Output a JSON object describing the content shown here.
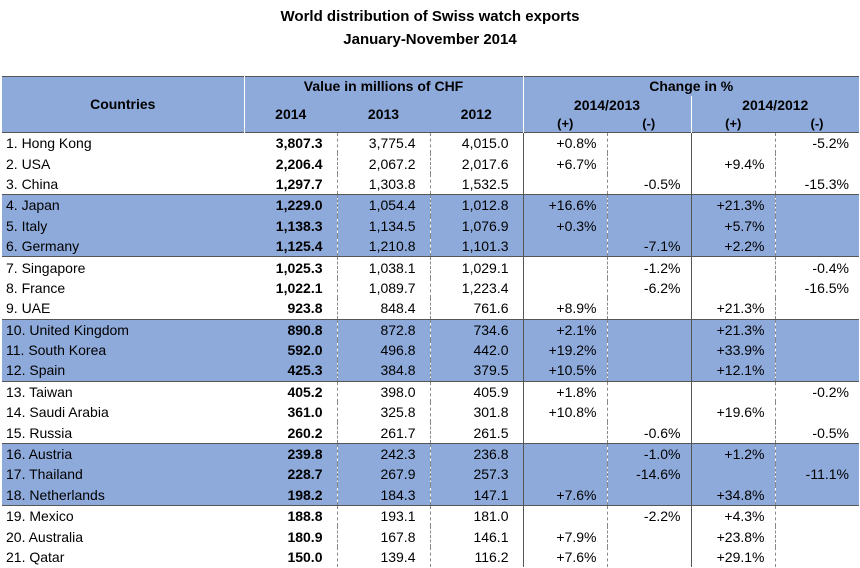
{
  "title": "World distribution of Swiss watch exports",
  "subtitle": "January-November 2014",
  "header": {
    "countries": "Countries",
    "value_group": "Value in millions of CHF",
    "change_group": "Change in %",
    "y2014": "2014",
    "y2013": "2013",
    "y2012": "2012",
    "p1": "2014/2013",
    "p2": "2014/2012",
    "plus": "(+)",
    "minus": "(-)"
  },
  "rows": [
    {
      "country": "1. Hong Kong",
      "v2014": "3,807.3",
      "v2013": "3,775.4",
      "v2012": "4,015.0",
      "c1p": "+0.8%",
      "c1m": "",
      "c2p": "",
      "c2m": "-5.2%",
      "hl": false
    },
    {
      "country": "2. USA",
      "v2014": "2,206.4",
      "v2013": "2,067.2",
      "v2012": "2,017.6",
      "c1p": "+6.7%",
      "c1m": "",
      "c2p": "+9.4%",
      "c2m": "",
      "hl": false
    },
    {
      "country": "3. China",
      "v2014": "1,297.7",
      "v2013": "1,303.8",
      "v2012": "1,532.5",
      "c1p": "",
      "c1m": "-0.5%",
      "c2p": "",
      "c2m": "-15.3%",
      "hl": false
    },
    {
      "country": "4. Japan",
      "v2014": "1,229.0",
      "v2013": "1,054.4",
      "v2012": "1,012.8",
      "c1p": "+16.6%",
      "c1m": "",
      "c2p": "+21.3%",
      "c2m": "",
      "hl": true
    },
    {
      "country": "5. Italy",
      "v2014": "1,138.3",
      "v2013": "1,134.5",
      "v2012": "1,076.9",
      "c1p": "+0.3%",
      "c1m": "",
      "c2p": "+5.7%",
      "c2m": "",
      "hl": true
    },
    {
      "country": "6. Germany",
      "v2014": "1,125.4",
      "v2013": "1,210.8",
      "v2012": "1,101.3",
      "c1p": "",
      "c1m": "-7.1%",
      "c2p": "+2.2%",
      "c2m": "",
      "hl": true
    },
    {
      "country": "7. Singapore",
      "v2014": "1,025.3",
      "v2013": "1,038.1",
      "v2012": "1,029.1",
      "c1p": "",
      "c1m": "-1.2%",
      "c2p": "",
      "c2m": "-0.4%",
      "hl": false
    },
    {
      "country": "8. France",
      "v2014": "1,022.1",
      "v2013": "1,089.7",
      "v2012": "1,223.4",
      "c1p": "",
      "c1m": "-6.2%",
      "c2p": "",
      "c2m": "-16.5%",
      "hl": false
    },
    {
      "country": "9. UAE",
      "v2014": "923.8",
      "v2013": "848.4",
      "v2012": "761.6",
      "c1p": "+8.9%",
      "c1m": "",
      "c2p": "+21.3%",
      "c2m": "",
      "hl": false
    },
    {
      "country": "10. United Kingdom",
      "v2014": "890.8",
      "v2013": "872.8",
      "v2012": "734.6",
      "c1p": "+2.1%",
      "c1m": "",
      "c2p": "+21.3%",
      "c2m": "",
      "hl": true
    },
    {
      "country": "11. South Korea",
      "v2014": "592.0",
      "v2013": "496.8",
      "v2012": "442.0",
      "c1p": "+19.2%",
      "c1m": "",
      "c2p": "+33.9%",
      "c2m": "",
      "hl": true
    },
    {
      "country": "12. Spain",
      "v2014": "425.3",
      "v2013": "384.8",
      "v2012": "379.5",
      "c1p": "+10.5%",
      "c1m": "",
      "c2p": "+12.1%",
      "c2m": "",
      "hl": true
    },
    {
      "country": "13. Taiwan",
      "v2014": "405.2",
      "v2013": "398.0",
      "v2012": "405.9",
      "c1p": "+1.8%",
      "c1m": "",
      "c2p": "",
      "c2m": "-0.2%",
      "hl": false
    },
    {
      "country": "14. Saudi Arabia",
      "v2014": "361.0",
      "v2013": "325.8",
      "v2012": "301.8",
      "c1p": "+10.8%",
      "c1m": "",
      "c2p": "+19.6%",
      "c2m": "",
      "hl": false
    },
    {
      "country": "15. Russia",
      "v2014": "260.2",
      "v2013": "261.7",
      "v2012": "261.5",
      "c1p": "",
      "c1m": "-0.6%",
      "c2p": "",
      "c2m": "-0.5%",
      "hl": false
    },
    {
      "country": "16. Austria",
      "v2014": "239.8",
      "v2013": "242.3",
      "v2012": "236.8",
      "c1p": "",
      "c1m": "-1.0%",
      "c2p": "+1.2%",
      "c2m": "",
      "hl": true
    },
    {
      "country": "17. Thailand",
      "v2014": "228.7",
      "v2013": "267.9",
      "v2012": "257.3",
      "c1p": "",
      "c1m": "-14.6%",
      "c2p": "",
      "c2m": "-11.1%",
      "hl": true
    },
    {
      "country": "18. Netherlands",
      "v2014": "198.2",
      "v2013": "184.3",
      "v2012": "147.1",
      "c1p": "+7.6%",
      "c1m": "",
      "c2p": "+34.8%",
      "c2m": "",
      "hl": true
    },
    {
      "country": "19. Mexico",
      "v2014": "188.8",
      "v2013": "193.1",
      "v2012": "181.0",
      "c1p": "",
      "c1m": "-2.2%",
      "c2p": "+4.3%",
      "c2m": "",
      "hl": false
    },
    {
      "country": "20. Australia",
      "v2014": "180.9",
      "v2013": "167.8",
      "v2012": "146.1",
      "c1p": "+7.9%",
      "c1m": "",
      "c2p": "+23.8%",
      "c2m": "",
      "hl": false
    },
    {
      "country": "21. Qatar",
      "v2014": "150.0",
      "v2013": "139.4",
      "v2012": "116.2",
      "c1p": "+7.6%",
      "c1m": "",
      "c2p": "+29.1%",
      "c2m": "",
      "hl": false
    }
  ]
}
